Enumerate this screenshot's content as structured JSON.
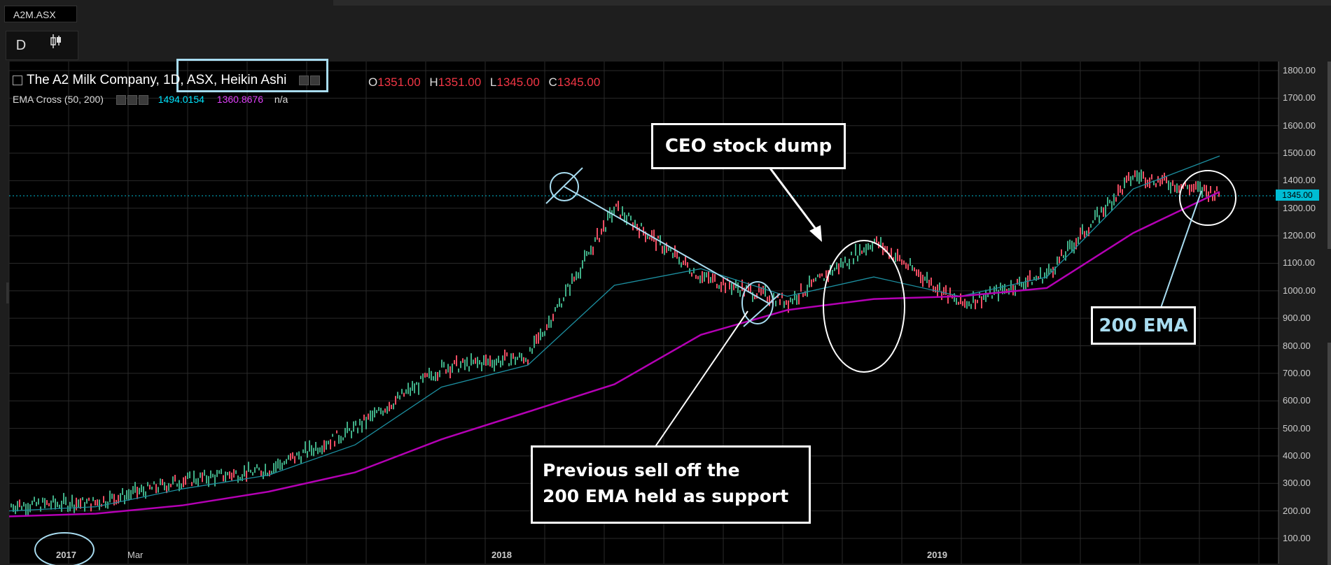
{
  "symbol_tab": "A2M.ASX",
  "toolbar": {
    "interval_label": "D",
    "chart_type_icon": "candles-icon"
  },
  "legend": {
    "title_prefix": "The A2 Milk Company",
    "title_rest": ", 1D, ASX, Heikin Ashi",
    "o_label": "O",
    "o_value": "1351.00",
    "h_label": "H",
    "h_value": "1351.00",
    "l_label": "L",
    "l_value": "1345.00",
    "c_label": "C",
    "c_value": "1345.00"
  },
  "ema_legend": {
    "name": "EMA Cross (50, 200)",
    "ema50": "1494.0154",
    "ema200": "1360.8676",
    "extra": "n/a"
  },
  "current_price_tag": "1345.00",
  "annotations": {
    "ceo": "CEO stock dump",
    "support_line1": "Previous sell off the",
    "support_line2": "200 EMA held as support",
    "ema200": "200 EMA"
  },
  "y_ticks": [
    "1800.00",
    "1700.00",
    "1600.00",
    "1500.00",
    "1400.00",
    "1300.00",
    "1200.00",
    "1100.00",
    "1000.00",
    "900.00",
    "800.00",
    "700.00",
    "600.00",
    "500.00",
    "400.00",
    "300.00",
    "200.00",
    "100.00"
  ],
  "x_ticks": [
    "2017",
    "Mar",
    "2018",
    "2019"
  ],
  "colors": {
    "bg": "#000000",
    "up": "#26a69a",
    "down": "#ef5350",
    "ema50": "#00bcd4",
    "ema200": "#b400b4",
    "annotation_blue": "#a8dcf0",
    "ohlc": "#f23645"
  },
  "chart_data": {
    "type": "line",
    "title": "The A2 Milk Company, 1D, ASX, Heikin Ashi",
    "xlabel": "",
    "ylabel": "",
    "ylim": [
      100,
      1800
    ],
    "x": [
      "2017-01",
      "2017-03",
      "2017-05",
      "2017-07",
      "2017-09",
      "2017-11",
      "2018-01",
      "2018-03",
      "2018-05",
      "2018-07",
      "2018-09",
      "2018-11",
      "2019-01",
      "2019-03",
      "2019-05"
    ],
    "series": [
      {
        "name": "Price",
        "values": [
          220,
          230,
          310,
          350,
          500,
          720,
          760,
          1300,
          1050,
          960,
          1180,
          950,
          1060,
          1420,
          1350
        ]
      },
      {
        "name": "EMA 50",
        "values": [
          200,
          215,
          280,
          330,
          440,
          650,
          730,
          1020,
          1080,
          980,
          1050,
          980,
          1050,
          1370,
          1490
        ]
      },
      {
        "name": "EMA 200",
        "values": [
          180,
          190,
          220,
          270,
          340,
          460,
          560,
          660,
          840,
          930,
          970,
          980,
          1010,
          1210,
          1360
        ]
      }
    ],
    "current_price": 1345.0,
    "grid": true
  }
}
